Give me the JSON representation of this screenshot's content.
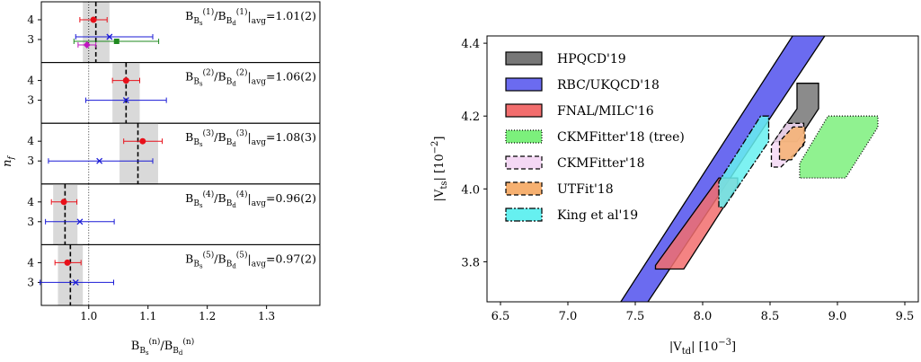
{
  "chart_data": [
    {
      "type": "scatter",
      "xlabel": "B_{B_s}^{(n)}/B_{B_d}^{(n)}",
      "ylabel": "n_f",
      "xlim": [
        0.92,
        1.39
      ],
      "xticks": [
        "1.0",
        "1.1",
        "1.2",
        "1.3"
      ],
      "xtick_values": [
        1.0,
        1.1,
        1.2,
        1.3
      ],
      "reference_line": 1.0,
      "panels": [
        {
          "annotation_ratio": "B_{B_s}^{(1)}/B_{B_d}^{(1)}|_avg",
          "annotation_value": "=1.01(2)",
          "avg": 1.012,
          "band": [
            0.99,
            1.035
          ],
          "rows": [
            {
              "label": "4",
              "points": [
                {
                  "x": 1.008,
                  "lo": 0.985,
                  "hi": 1.031,
                  "color": "#e8101a",
                  "marker": "circle"
                }
              ]
            },
            {
              "label": "3",
              "points": [
                {
                  "x": 1.035,
                  "lo": 0.978,
                  "hi": 1.108,
                  "color": "#1a1ad6",
                  "marker": "x"
                },
                {
                  "x": 1.047,
                  "lo": 0.975,
                  "hi": 1.118,
                  "color": "#1f8a1f",
                  "marker": "square"
                },
                {
                  "x": 0.997,
                  "lo": 0.982,
                  "hi": 1.012,
                  "color": "#c017c0",
                  "marker": "diamond"
                }
              ]
            }
          ]
        },
        {
          "annotation_ratio": "B_{B_s}^{(2)}/B_{B_d}^{(2)}|_avg",
          "annotation_value": "=1.06(2)",
          "avg": 1.063,
          "band": [
            1.04,
            1.086
          ],
          "rows": [
            {
              "label": "4",
              "points": [
                {
                  "x": 1.063,
                  "lo": 1.04,
                  "hi": 1.086,
                  "color": "#e8101a",
                  "marker": "circle"
                }
              ]
            },
            {
              "label": "3",
              "points": [
                {
                  "x": 1.063,
                  "lo": 0.995,
                  "hi": 1.131,
                  "color": "#1a1ad6",
                  "marker": "x"
                }
              ]
            }
          ]
        },
        {
          "annotation_ratio": "B_{B_s}^{(3)}/B_{B_d}^{(3)}|_avg",
          "annotation_value": "=1.08(3)",
          "avg": 1.083,
          "band": [
            1.052,
            1.117
          ],
          "rows": [
            {
              "label": "4",
              "points": [
                {
                  "x": 1.091,
                  "lo": 1.059,
                  "hi": 1.124,
                  "color": "#e8101a",
                  "marker": "circle"
                }
              ]
            },
            {
              "label": "3",
              "points": [
                {
                  "x": 1.018,
                  "lo": 0.932,
                  "hi": 1.108,
                  "color": "#1a1ad6",
                  "marker": "x"
                }
              ]
            }
          ]
        },
        {
          "annotation_ratio": "B_{B_s}^{(4)}/B_{B_d}^{(4)}|_avg",
          "annotation_value": "=0.96(2)",
          "avg": 0.96,
          "band": [
            0.94,
            0.981
          ],
          "rows": [
            {
              "label": "4",
              "points": [
                {
                  "x": 0.958,
                  "lo": 0.937,
                  "hi": 0.98,
                  "color": "#e8101a",
                  "marker": "circle"
                }
              ]
            },
            {
              "label": "3",
              "points": [
                {
                  "x": 0.985,
                  "lo": 0.927,
                  "hi": 1.043,
                  "color": "#1a1ad6",
                  "marker": "x"
                }
              ]
            }
          ]
        },
        {
          "annotation_ratio": "B_{B_s}^{(5)}/B_{B_d}^{(5)}|_avg",
          "annotation_value": "=0.97(2)",
          "avg": 0.969,
          "band": [
            0.948,
            0.99
          ],
          "rows": [
            {
              "label": "4",
              "points": [
                {
                  "x": 0.964,
                  "lo": 0.943,
                  "hi": 0.987,
                  "color": "#e8101a",
                  "marker": "circle"
                }
              ]
            },
            {
              "label": "3",
              "points": [
                {
                  "x": 0.978,
                  "lo": 0.918,
                  "hi": 1.042,
                  "color": "#1a1ad6",
                  "marker": "x"
                }
              ]
            }
          ]
        }
      ]
    },
    {
      "type": "area",
      "xlabel": "|V_td|  [10^-3]",
      "ylabel": "|V_ts|  [10^-2]",
      "xlim": [
        6.4,
        9.6
      ],
      "ylim": [
        3.69,
        4.42
      ],
      "xticks": [
        "6.5",
        "7.0",
        "7.5",
        "8.0",
        "8.5",
        "9.0",
        "9.5"
      ],
      "xtick_values": [
        6.5,
        7.0,
        7.5,
        8.0,
        8.5,
        9.0,
        9.5
      ],
      "yticks": [
        "3.8",
        "4.0",
        "4.2",
        "4.4"
      ],
      "ytick_values": [
        3.8,
        4.0,
        4.2,
        4.4
      ],
      "legend_position": "top-left",
      "series": [
        {
          "name": "RBC/UKQCD'18",
          "fill": "#6b6bf0",
          "edge": "#000000",
          "dash": "",
          "polygon": [
            [
              7.34,
              3.66
            ],
            [
              7.54,
              3.66
            ],
            [
              8.96,
              4.45
            ],
            [
              8.72,
              4.45
            ]
          ]
        },
        {
          "name": "FNAL/MILC'16",
          "fill": "#f26d6d",
          "edge": "#000000",
          "dash": "",
          "polygon": [
            [
              7.65,
              3.78
            ],
            [
              7.86,
              3.78
            ],
            [
              8.26,
              4.01
            ],
            [
              8.26,
              4.03
            ],
            [
              8.12,
              4.03
            ],
            [
              7.65,
              3.79
            ]
          ]
        },
        {
          "name": "HPQCD'19",
          "fill": "#777777",
          "edge": "#000000",
          "dash": "",
          "polygon": [
            [
              8.53,
              4.13
            ],
            [
              8.7,
              4.22
            ],
            [
              8.7,
              4.29
            ],
            [
              8.86,
              4.29
            ],
            [
              8.86,
              4.22
            ],
            [
              8.7,
              4.13
            ]
          ]
        },
        {
          "name": "CKMFitter'18 (tree)",
          "fill": "#7cf07c",
          "edge": "#000000",
          "dash": "1,2",
          "polygon": [
            [
              8.72,
              4.03
            ],
            [
              8.72,
              4.07
            ],
            [
              8.93,
              4.2
            ],
            [
              9.3,
              4.2
            ],
            [
              9.3,
              4.17
            ],
            [
              9.06,
              4.03
            ]
          ]
        },
        {
          "name": "CKMFitter'18",
          "fill": "#f4d8f4",
          "edge": "#000000",
          "dash": "5,3",
          "polygon": [
            [
              8.51,
              4.06
            ],
            [
              8.51,
              4.12
            ],
            [
              8.62,
              4.18
            ],
            [
              8.75,
              4.18
            ],
            [
              8.75,
              4.12
            ],
            [
              8.58,
              4.06
            ]
          ]
        },
        {
          "name": "UTFit'18",
          "fill": "#f6b070",
          "edge": "#000000",
          "dash": "5,3",
          "polygon": [
            [
              8.57,
              4.08
            ],
            [
              8.57,
              4.13
            ],
            [
              8.67,
              4.17
            ],
            [
              8.76,
              4.17
            ],
            [
              8.76,
              4.13
            ],
            [
              8.66,
              4.08
            ]
          ]
        },
        {
          "name": "King et al'19",
          "fill": "#66f0f0",
          "edge": "#000000",
          "dash": "7,2,2,2",
          "polygon": [
            [
              8.12,
              3.95
            ],
            [
              8.12,
              4.02
            ],
            [
              8.43,
              4.2
            ],
            [
              8.49,
              4.2
            ],
            [
              8.49,
              4.13
            ],
            [
              8.16,
              3.95
            ]
          ]
        }
      ],
      "legend_order": [
        "HPQCD'19",
        "RBC/UKQCD'18",
        "FNAL/MILC'16",
        "CKMFitter'18 (tree)",
        "CKMFitter'18",
        "UTFit'18",
        "King et al'19"
      ]
    }
  ]
}
